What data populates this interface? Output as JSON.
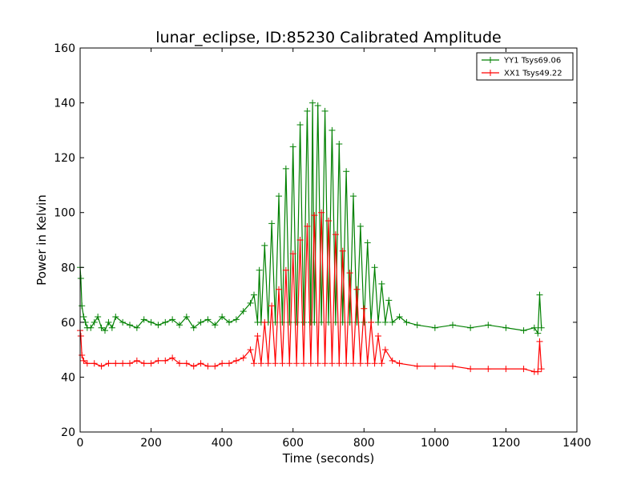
{
  "chart_data": {
    "type": "line",
    "title": "lunar_eclipse, ID:85230 Calibrated Amplitude",
    "xlabel": "Time (seconds)",
    "ylabel": "Power in Kelvin",
    "xlim": [
      0,
      1400
    ],
    "ylim": [
      20,
      160
    ],
    "xticks": [
      0,
      200,
      400,
      600,
      800,
      1000,
      1200,
      1400
    ],
    "yticks": [
      20,
      40,
      60,
      80,
      100,
      120,
      140,
      160
    ],
    "grid": false,
    "legend_position": "top-right",
    "series": [
      {
        "name": "YY1 Tsys69.06",
        "color": "#008000",
        "marker": "+",
        "points": [
          [
            0,
            80
          ],
          [
            2,
            76
          ],
          [
            5,
            66
          ],
          [
            10,
            62
          ],
          [
            15,
            60
          ],
          [
            20,
            58
          ],
          [
            30,
            58
          ],
          [
            40,
            60
          ],
          [
            50,
            62
          ],
          [
            60,
            58
          ],
          [
            70,
            57
          ],
          [
            80,
            60
          ],
          [
            90,
            58
          ],
          [
            100,
            62
          ],
          [
            120,
            60
          ],
          [
            140,
            59
          ],
          [
            160,
            58
          ],
          [
            180,
            61
          ],
          [
            200,
            60
          ],
          [
            220,
            59
          ],
          [
            240,
            60
          ],
          [
            260,
            61
          ],
          [
            280,
            59
          ],
          [
            300,
            62
          ],
          [
            320,
            58
          ],
          [
            340,
            60
          ],
          [
            360,
            61
          ],
          [
            380,
            59
          ],
          [
            400,
            62
          ],
          [
            420,
            60
          ],
          [
            440,
            61
          ],
          [
            460,
            64
          ],
          [
            480,
            67
          ],
          [
            490,
            70
          ],
          [
            500,
            60
          ],
          [
            505,
            79
          ],
          [
            510,
            60
          ],
          [
            520,
            88
          ],
          [
            530,
            60
          ],
          [
            540,
            96
          ],
          [
            550,
            60
          ],
          [
            560,
            106
          ],
          [
            570,
            60
          ],
          [
            580,
            116
          ],
          [
            590,
            60
          ],
          [
            600,
            124
          ],
          [
            610,
            60
          ],
          [
            620,
            132
          ],
          [
            630,
            60
          ],
          [
            640,
            137
          ],
          [
            650,
            60
          ],
          [
            655,
            140
          ],
          [
            660,
            60
          ],
          [
            670,
            139
          ],
          [
            680,
            60
          ],
          [
            690,
            137
          ],
          [
            700,
            60
          ],
          [
            710,
            130
          ],
          [
            720,
            60
          ],
          [
            730,
            125
          ],
          [
            740,
            60
          ],
          [
            750,
            115
          ],
          [
            760,
            60
          ],
          [
            770,
            106
          ],
          [
            780,
            60
          ],
          [
            790,
            95
          ],
          [
            800,
            60
          ],
          [
            810,
            89
          ],
          [
            820,
            60
          ],
          [
            830,
            80
          ],
          [
            840,
            60
          ],
          [
            850,
            74
          ],
          [
            860,
            60
          ],
          [
            870,
            68
          ],
          [
            880,
            60
          ],
          [
            900,
            62
          ],
          [
            920,
            60
          ],
          [
            950,
            59
          ],
          [
            1000,
            58
          ],
          [
            1050,
            59
          ],
          [
            1100,
            58
          ],
          [
            1150,
            59
          ],
          [
            1200,
            58
          ],
          [
            1250,
            57
          ],
          [
            1280,
            58
          ],
          [
            1290,
            56
          ],
          [
            1295,
            70
          ],
          [
            1300,
            58
          ]
        ]
      },
      {
        "name": "XX1 Tsys49.22",
        "color": "#ff0000",
        "marker": "+",
        "points": [
          [
            0,
            57
          ],
          [
            2,
            55
          ],
          [
            5,
            48
          ],
          [
            10,
            46
          ],
          [
            20,
            45
          ],
          [
            40,
            45
          ],
          [
            60,
            44
          ],
          [
            80,
            45
          ],
          [
            100,
            45
          ],
          [
            120,
            45
          ],
          [
            140,
            45
          ],
          [
            160,
            46
          ],
          [
            180,
            45
          ],
          [
            200,
            45
          ],
          [
            220,
            46
          ],
          [
            240,
            46
          ],
          [
            260,
            47
          ],
          [
            280,
            45
          ],
          [
            300,
            45
          ],
          [
            320,
            44
          ],
          [
            340,
            45
          ],
          [
            360,
            44
          ],
          [
            380,
            44
          ],
          [
            400,
            45
          ],
          [
            420,
            45
          ],
          [
            440,
            46
          ],
          [
            460,
            47
          ],
          [
            480,
            50
          ],
          [
            490,
            45
          ],
          [
            500,
            55
          ],
          [
            510,
            45
          ],
          [
            520,
            60
          ],
          [
            530,
            45
          ],
          [
            540,
            66
          ],
          [
            550,
            45
          ],
          [
            560,
            72
          ],
          [
            570,
            45
          ],
          [
            580,
            79
          ],
          [
            590,
            45
          ],
          [
            600,
            85
          ],
          [
            610,
            45
          ],
          [
            620,
            90
          ],
          [
            630,
            45
          ],
          [
            640,
            95
          ],
          [
            650,
            45
          ],
          [
            660,
            99
          ],
          [
            670,
            45
          ],
          [
            680,
            100
          ],
          [
            690,
            45
          ],
          [
            700,
            97
          ],
          [
            710,
            45
          ],
          [
            720,
            92
          ],
          [
            730,
            45
          ],
          [
            740,
            86
          ],
          [
            750,
            45
          ],
          [
            760,
            78
          ],
          [
            770,
            45
          ],
          [
            780,
            72
          ],
          [
            790,
            45
          ],
          [
            800,
            65
          ],
          [
            810,
            45
          ],
          [
            820,
            60
          ],
          [
            830,
            45
          ],
          [
            840,
            55
          ],
          [
            850,
            45
          ],
          [
            860,
            50
          ],
          [
            880,
            46
          ],
          [
            900,
            45
          ],
          [
            950,
            44
          ],
          [
            1000,
            44
          ],
          [
            1050,
            44
          ],
          [
            1100,
            43
          ],
          [
            1150,
            43
          ],
          [
            1200,
            43
          ],
          [
            1250,
            43
          ],
          [
            1280,
            42
          ],
          [
            1290,
            42
          ],
          [
            1295,
            53
          ],
          [
            1300,
            43
          ]
        ]
      }
    ]
  }
}
